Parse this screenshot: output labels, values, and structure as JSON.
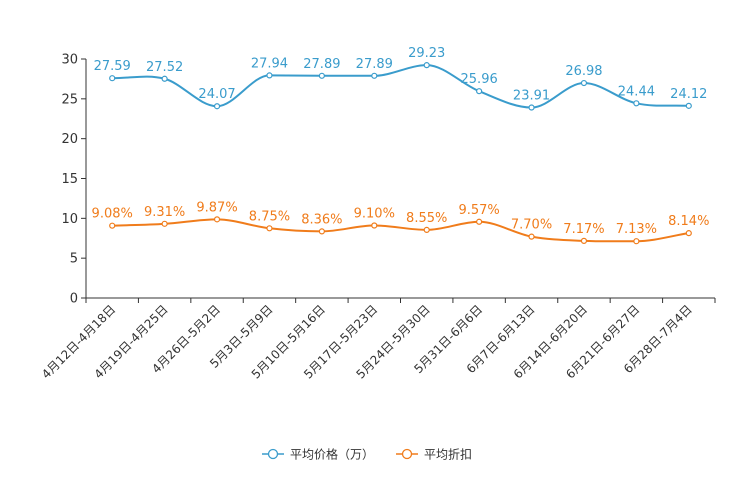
{
  "chart_data": {
    "type": "line",
    "categories": [
      "4月12日-4月18日",
      "4月19日-4月25日",
      "4月26日-5月2日",
      "5月3日-5月9日",
      "5月10日-5月16日",
      "5月17日-5月23日",
      "5月24日-5月30日",
      "5月31日-6月6日",
      "6月7日-6月13日",
      "6月14日-6月20日",
      "6月21日-6月27日",
      "6月28日-7月4日"
    ],
    "series": [
      {
        "name": "平均价格（万）",
        "color": "#3a9ccc",
        "values": [
          27.59,
          27.52,
          24.07,
          27.94,
          27.89,
          27.89,
          29.23,
          25.96,
          23.91,
          26.98,
          24.44,
          24.12
        ],
        "labels": [
          "27.59",
          "27.52",
          "24.07",
          "27.94",
          "27.89",
          "27.89",
          "29.23",
          "25.96",
          "23.91",
          "26.98",
          "24.44",
          "24.12"
        ]
      },
      {
        "name": "平均折扣",
        "color": "#f07c1b",
        "values": [
          9.08,
          9.31,
          9.87,
          8.75,
          8.36,
          9.1,
          8.55,
          9.57,
          7.7,
          7.17,
          7.13,
          8.14
        ],
        "labels": [
          "9.08%",
          "9.31%",
          "9.87%",
          "8.75%",
          "8.36%",
          "9.10%",
          "8.55%",
          "9.57%",
          "7.70%",
          "7.17%",
          "7.13%",
          "8.14%"
        ]
      }
    ],
    "yticks": [
      0,
      5,
      10,
      15,
      20,
      25,
      30
    ],
    "ylim": [
      0,
      30
    ],
    "title": "",
    "xlabel": "",
    "ylabel": "",
    "legend_position": "bottom-center"
  }
}
